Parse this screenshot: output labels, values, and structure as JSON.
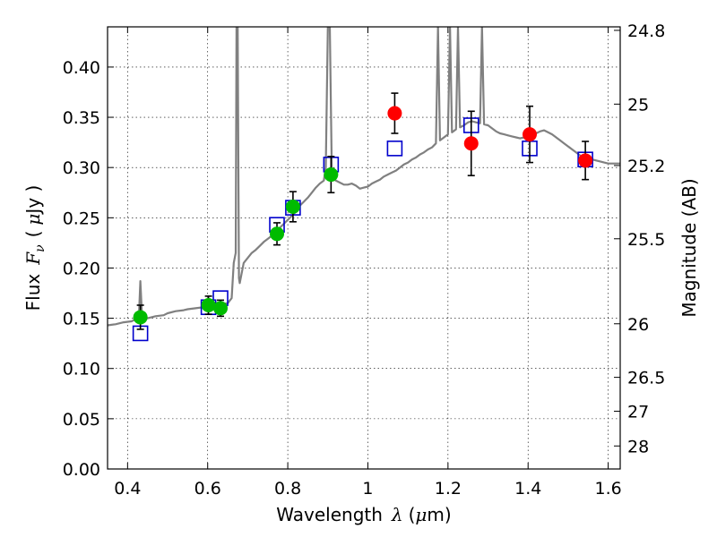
{
  "chart_data": {
    "type": "scatter",
    "title": "",
    "xlabel": {
      "prefix": "Wavelength",
      "symbol": "λ",
      "unit_open": "(",
      "unit_mu": "μ",
      "unit_rest": "m)"
    },
    "ylabel": {
      "prefix": "Flux",
      "symbol": "F",
      "subscript": "ν",
      "unit_open": "(",
      "unit_mu": "μ",
      "unit_rest": "Jy )"
    },
    "y2label": "Magnitude (AB)",
    "xlim": [
      0.35,
      1.63
    ],
    "ylim": [
      0.0,
      0.44
    ],
    "grid": true,
    "x_ticks": [
      0.4,
      0.6,
      0.8,
      1.0,
      1.2,
      1.4,
      1.6
    ],
    "x_tick_labels": [
      "0.4",
      "0.6",
      "0.8",
      "1",
      "1.2",
      "1.4",
      "1.6"
    ],
    "y_ticks": [
      0.0,
      0.05,
      0.1,
      0.15,
      0.2,
      0.25,
      0.3,
      0.35,
      0.4
    ],
    "y_tick_labels": [
      "0.00",
      "0.05",
      "0.10",
      "0.15",
      "0.20",
      "0.25",
      "0.30",
      "0.35",
      "0.40"
    ],
    "y2_ticks": [
      {
        "label": "24.8",
        "flux": 0.4365
      },
      {
        "label": "25",
        "flux": 0.3631
      },
      {
        "label": "25.2",
        "flux": 0.302
      },
      {
        "label": "25.5",
        "flux": 0.2291
      },
      {
        "label": "26",
        "flux": 0.1445
      },
      {
        "label": "26.5",
        "flux": 0.0912
      },
      {
        "label": "27",
        "flux": 0.0575
      },
      {
        "label": "28",
        "flux": 0.0229
      }
    ],
    "colors": {
      "model": "#808080",
      "optical": "#00bb00",
      "nir": "#ff0000",
      "model_flux": "#0000cc",
      "errorbar": "#000000"
    },
    "series": [
      {
        "kind": "line",
        "points": [
          [
            0.35,
            0.143
          ],
          [
            0.37,
            0.144
          ],
          [
            0.39,
            0.146
          ],
          [
            0.41,
            0.147
          ],
          [
            0.42,
            0.149
          ],
          [
            0.428,
            0.15
          ],
          [
            0.432,
            0.187
          ],
          [
            0.436,
            0.153
          ],
          [
            0.45,
            0.15
          ],
          [
            0.47,
            0.152
          ],
          [
            0.49,
            0.153
          ],
          [
            0.5,
            0.155
          ],
          [
            0.52,
            0.157
          ],
          [
            0.54,
            0.158
          ],
          [
            0.55,
            0.159
          ],
          [
            0.57,
            0.16
          ],
          [
            0.59,
            0.161
          ],
          [
            0.61,
            0.162
          ],
          [
            0.63,
            0.164
          ],
          [
            0.65,
            0.165
          ],
          [
            0.66,
            0.17
          ],
          [
            0.665,
            0.205
          ],
          [
            0.67,
            0.215
          ],
          [
            0.672,
            0.44
          ],
          [
            0.675,
            0.44
          ],
          [
            0.678,
            0.19
          ],
          [
            0.68,
            0.185
          ],
          [
            0.69,
            0.205
          ],
          [
            0.7,
            0.21
          ],
          [
            0.71,
            0.215
          ],
          [
            0.72,
            0.218
          ],
          [
            0.73,
            0.222
          ],
          [
            0.74,
            0.226
          ],
          [
            0.75,
            0.229
          ],
          [
            0.76,
            0.232
          ],
          [
            0.77,
            0.236
          ],
          [
            0.78,
            0.24
          ],
          [
            0.79,
            0.244
          ],
          [
            0.8,
            0.248
          ],
          [
            0.81,
            0.252
          ],
          [
            0.82,
            0.256
          ],
          [
            0.83,
            0.262
          ],
          [
            0.84,
            0.266
          ],
          [
            0.85,
            0.27
          ],
          [
            0.86,
            0.275
          ],
          [
            0.87,
            0.28
          ],
          [
            0.88,
            0.284
          ],
          [
            0.89,
            0.287
          ],
          [
            0.895,
            0.3
          ],
          [
            0.9,
            0.44
          ],
          [
            0.905,
            0.44
          ],
          [
            0.91,
            0.29
          ],
          [
            0.92,
            0.287
          ],
          [
            0.93,
            0.285
          ],
          [
            0.94,
            0.283
          ],
          [
            0.95,
            0.283
          ],
          [
            0.96,
            0.284
          ],
          [
            0.97,
            0.282
          ],
          [
            0.98,
            0.279
          ],
          [
            0.99,
            0.28
          ],
          [
            1.0,
            0.281
          ],
          [
            1.01,
            0.284
          ],
          [
            1.02,
            0.286
          ],
          [
            1.03,
            0.288
          ],
          [
            1.04,
            0.291
          ],
          [
            1.05,
            0.293
          ],
          [
            1.06,
            0.295
          ],
          [
            1.07,
            0.297
          ],
          [
            1.08,
            0.3
          ],
          [
            1.09,
            0.303
          ],
          [
            1.1,
            0.305
          ],
          [
            1.11,
            0.308
          ],
          [
            1.12,
            0.31
          ],
          [
            1.13,
            0.313
          ],
          [
            1.14,
            0.315
          ],
          [
            1.15,
            0.318
          ],
          [
            1.16,
            0.32
          ],
          [
            1.17,
            0.324
          ],
          [
            1.175,
            0.44
          ],
          [
            1.18,
            0.327
          ],
          [
            1.19,
            0.33
          ],
          [
            1.2,
            0.333
          ],
          [
            1.205,
            0.44
          ],
          [
            1.21,
            0.335
          ],
          [
            1.22,
            0.338
          ],
          [
            1.225,
            0.44
          ],
          [
            1.23,
            0.34
          ],
          [
            1.24,
            0.342
          ],
          [
            1.25,
            0.345
          ],
          [
            1.26,
            0.346
          ],
          [
            1.27,
            0.345
          ],
          [
            1.28,
            0.344
          ],
          [
            1.285,
            0.44
          ],
          [
            1.29,
            0.343
          ],
          [
            1.3,
            0.342
          ],
          [
            1.31,
            0.339
          ],
          [
            1.32,
            0.336
          ],
          [
            1.33,
            0.334
          ],
          [
            1.34,
            0.333
          ],
          [
            1.35,
            0.332
          ],
          [
            1.36,
            0.331
          ],
          [
            1.37,
            0.33
          ],
          [
            1.38,
            0.329
          ],
          [
            1.39,
            0.33
          ],
          [
            1.4,
            0.331
          ],
          [
            1.41,
            0.332
          ],
          [
            1.42,
            0.334
          ],
          [
            1.43,
            0.336
          ],
          [
            1.44,
            0.337
          ],
          [
            1.45,
            0.335
          ],
          [
            1.46,
            0.333
          ],
          [
            1.47,
            0.33
          ],
          [
            1.48,
            0.327
          ],
          [
            1.49,
            0.324
          ],
          [
            1.5,
            0.321
          ],
          [
            1.51,
            0.318
          ],
          [
            1.52,
            0.315
          ],
          [
            1.53,
            0.312
          ],
          [
            1.54,
            0.31
          ],
          [
            1.55,
            0.309
          ],
          [
            1.56,
            0.308
          ],
          [
            1.57,
            0.307
          ],
          [
            1.58,
            0.306
          ],
          [
            1.59,
            0.305
          ],
          [
            1.6,
            0.304
          ],
          [
            1.61,
            0.304
          ],
          [
            1.62,
            0.304
          ],
          [
            1.63,
            0.304
          ]
        ]
      },
      {
        "kind": "model_points",
        "points": [
          [
            0.432,
            0.135
          ],
          [
            0.602,
            0.161
          ],
          [
            0.632,
            0.17
          ],
          [
            0.773,
            0.243
          ],
          [
            0.813,
            0.26
          ],
          [
            0.908,
            0.303
          ],
          [
            1.067,
            0.319
          ],
          [
            1.258,
            0.342
          ],
          [
            1.404,
            0.319
          ],
          [
            1.543,
            0.308
          ]
        ]
      },
      {
        "kind": "optical_obs",
        "points": [
          {
            "x": 0.432,
            "y": 0.151,
            "err": 0.012
          },
          {
            "x": 0.602,
            "y": 0.163,
            "err": 0.009
          },
          {
            "x": 0.632,
            "y": 0.16,
            "err": 0.008
          },
          {
            "x": 0.773,
            "y": 0.234,
            "err": 0.011
          },
          {
            "x": 0.813,
            "y": 0.261,
            "err": 0.015
          },
          {
            "x": 0.908,
            "y": 0.293,
            "err": 0.018
          }
        ]
      },
      {
        "kind": "nir_obs",
        "points": [
          {
            "x": 1.067,
            "y": 0.354,
            "err": 0.02
          },
          {
            "x": 1.258,
            "y": 0.324,
            "err": 0.032
          },
          {
            "x": 1.404,
            "y": 0.333,
            "err": 0.028
          },
          {
            "x": 1.543,
            "y": 0.307,
            "err": 0.019
          }
        ]
      }
    ]
  }
}
